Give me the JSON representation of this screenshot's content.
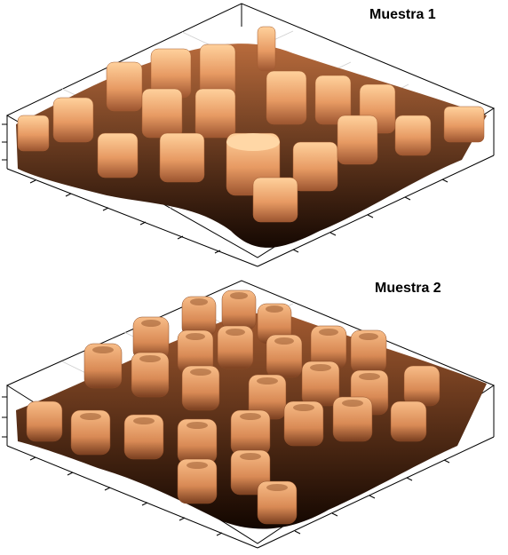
{
  "figure": {
    "panels": [
      {
        "title": "Muestra 1",
        "surface": "irregular cylindrical pillars with rough edges, deep valleys",
        "colormap": "copper"
      },
      {
        "title": "Muestra 2",
        "surface": "regular array of ring-shaped pillars with hollow centres",
        "colormap": "copper"
      }
    ],
    "colors": {
      "peak": "#ffc48a",
      "mid": "#d98a55",
      "valley": "#1a0c04",
      "box": "#000000",
      "grid": "#c8c8c8"
    }
  }
}
